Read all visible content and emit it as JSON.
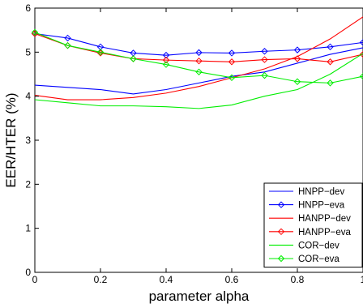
{
  "chart_data": {
    "type": "line",
    "title": "",
    "xlabel": "parameter alpha",
    "ylabel": "EER/HTER (%)",
    "xlim": [
      0,
      1
    ],
    "ylim": [
      0,
      6
    ],
    "xticks": [
      0,
      0.2,
      0.4,
      0.6,
      0.8,
      1
    ],
    "xtick_labels": [
      "0",
      "0.2",
      "0.4",
      "0.6",
      "0.8",
      "1"
    ],
    "yticks": [
      0,
      1,
      2,
      3,
      4,
      5,
      6
    ],
    "ytick_labels": [
      "0",
      "1",
      "2",
      "3",
      "4",
      "5",
      "6"
    ],
    "grid": false,
    "legend_position": "bottom-right",
    "x": [
      0,
      0.1,
      0.2,
      0.3,
      0.4,
      0.5,
      0.6,
      0.7,
      0.8,
      0.9,
      1.0
    ],
    "series": [
      {
        "name": "HNPP−dev",
        "color": "#0000ff",
        "marker": "none",
        "values": [
          4.25,
          4.2,
          4.15,
          4.05,
          4.15,
          4.3,
          4.45,
          4.55,
          4.75,
          4.95,
          5.1
        ]
      },
      {
        "name": "HNPP−eva",
        "color": "#0000ff",
        "marker": "diamond",
        "values": [
          5.42,
          5.32,
          5.12,
          4.98,
          4.93,
          4.99,
          4.98,
          5.02,
          5.05,
          5.12,
          5.22
        ]
      },
      {
        "name": "HANPP−dev",
        "color": "#ff0000",
        "marker": "none",
        "values": [
          4.02,
          3.92,
          3.92,
          3.97,
          4.07,
          4.22,
          4.42,
          4.62,
          4.9,
          5.3,
          5.8
        ]
      },
      {
        "name": "HANPP−eva",
        "color": "#ff0000",
        "marker": "diamond",
        "values": [
          5.42,
          5.15,
          4.98,
          4.85,
          4.82,
          4.8,
          4.78,
          4.83,
          4.85,
          4.78,
          4.95
        ]
      },
      {
        "name": "COR−dev",
        "color": "#00ee00",
        "marker": "none",
        "values": [
          3.92,
          3.85,
          3.78,
          3.78,
          3.76,
          3.72,
          3.8,
          4.0,
          4.15,
          4.5,
          4.97
        ]
      },
      {
        "name": "COR−eva",
        "color": "#00ee00",
        "marker": "diamond",
        "values": [
          5.45,
          5.15,
          5.0,
          4.85,
          4.72,
          4.55,
          4.42,
          4.47,
          4.33,
          4.3,
          4.45
        ]
      }
    ]
  }
}
